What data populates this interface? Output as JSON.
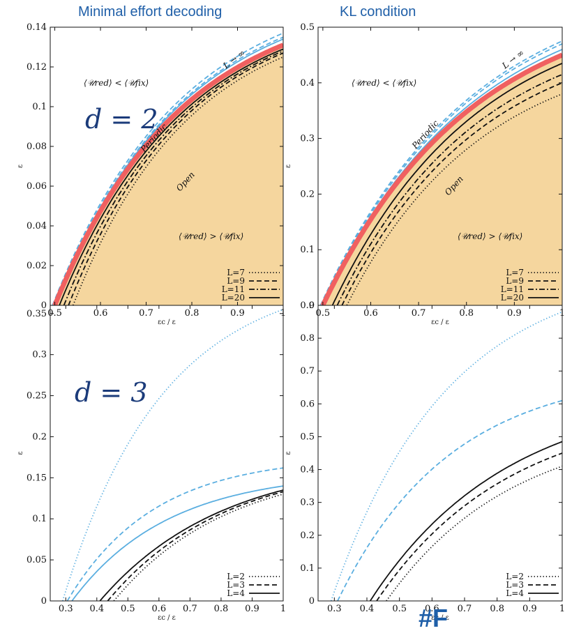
{
  "columns": {
    "left": "Minimal effort decoding",
    "right": "KL condition"
  },
  "labels": {
    "d2": "d = 2",
    "d3": "d = 3",
    "periodic": "Periodic",
    "open": "Open",
    "linf": "L → ∞",
    "region_upper": "⟨𝒰red⟩ < ⟨𝒰fix⟩",
    "region_lower": "⟨𝒰red⟩ > ⟨𝒰fix⟩",
    "xlabel": "εc / ε",
    "ylabel": "ε"
  },
  "colors": {
    "blue": "#5aaee0",
    "red": "#f06060",
    "fill": "#f5d69e",
    "black": "#111111"
  },
  "watermark": "#F",
  "chart_data": [
    {
      "panel": "top-left",
      "type": "line",
      "title": "Minimal effort decoding",
      "xlim": [
        0.49,
        1.0
      ],
      "ylim": [
        0,
        0.14
      ],
      "xticks": [
        0.5,
        0.6,
        0.7,
        0.8,
        0.9,
        1
      ],
      "xtick_labels": [
        "0.5",
        "0.6",
        "0.7",
        "0.8",
        "0.9",
        "1"
      ],
      "yticks": [
        0,
        0.02,
        0.04,
        0.06,
        0.08,
        0.1,
        0.12,
        0.14
      ],
      "ytick_labels": [
        "0",
        "0.02",
        "0.04",
        "0.06",
        "0.08",
        "0.1",
        "0.12",
        "0.14"
      ],
      "legend": [
        "L=7",
        "L=9",
        "L=11",
        "L=20"
      ],
      "legend_position": "bottom-right",
      "series": [
        {
          "name": "L=7",
          "group": "open",
          "style": "dotted",
          "x0": 0.54,
          "y1": 0.125,
          "k": 1.8
        },
        {
          "name": "L=9",
          "group": "open",
          "style": "dashed",
          "x0": 0.53,
          "y1": 0.127,
          "k": 1.8
        },
        {
          "name": "L=11",
          "group": "open",
          "style": "dashdot",
          "x0": 0.52,
          "y1": 0.128,
          "k": 1.8
        },
        {
          "name": "L=20",
          "group": "open",
          "style": "solid",
          "x0": 0.51,
          "y1": 0.129,
          "k": 1.8
        },
        {
          "group": "periodic",
          "style": "dashed",
          "x0": 0.495,
          "y1": 0.137,
          "k": 1.8
        },
        {
          "group": "periodic",
          "style": "dashed",
          "x0": 0.497,
          "y1": 0.135,
          "k": 1.8
        },
        {
          "group": "periodic",
          "style": "solid",
          "x0": 0.498,
          "y1": 0.134,
          "k": 1.8
        },
        {
          "group": "limit",
          "style": "thick",
          "x0": 0.5,
          "y1": 0.131,
          "k": 1.8
        }
      ]
    },
    {
      "panel": "top-right",
      "type": "line",
      "title": "KL condition",
      "xlim": [
        0.49,
        1.0
      ],
      "ylim": [
        0,
        0.5
      ],
      "xticks": [
        0.5,
        0.6,
        0.7,
        0.8,
        0.9,
        1
      ],
      "xtick_labels": [
        "0.5",
        "0.6",
        "0.7",
        "0.8",
        "0.9",
        "1"
      ],
      "yticks": [
        0,
        0.1,
        0.2,
        0.3,
        0.4,
        0.5
      ],
      "ytick_labels": [
        "0",
        "0.1",
        "0.2",
        "0.3",
        "0.4",
        "0.5"
      ],
      "legend": [
        "L=7",
        "L=9",
        "L=11",
        "L=20"
      ],
      "legend_position": "bottom-right",
      "series": [
        {
          "name": "L=7",
          "group": "open",
          "style": "dotted",
          "x0": 0.55,
          "y1": 0.38,
          "k": 1.6
        },
        {
          "name": "L=9",
          "group": "open",
          "style": "dashed",
          "x0": 0.54,
          "y1": 0.4,
          "k": 1.6
        },
        {
          "name": "L=11",
          "group": "open",
          "style": "dashdot",
          "x0": 0.53,
          "y1": 0.415,
          "k": 1.6
        },
        {
          "name": "L=20",
          "group": "open",
          "style": "solid",
          "x0": 0.52,
          "y1": 0.435,
          "k": 1.6
        },
        {
          "group": "periodic",
          "style": "dashed",
          "x0": 0.495,
          "y1": 0.475,
          "k": 1.6
        },
        {
          "group": "periodic",
          "style": "dashed",
          "x0": 0.497,
          "y1": 0.47,
          "k": 1.6
        },
        {
          "group": "periodic",
          "style": "solid",
          "x0": 0.498,
          "y1": 0.46,
          "k": 1.6
        },
        {
          "group": "limit",
          "style": "thick",
          "x0": 0.5,
          "y1": 0.45,
          "k": 1.6
        }
      ]
    },
    {
      "panel": "bottom-left",
      "type": "line",
      "xlim": [
        0.25,
        1.0
      ],
      "ylim": [
        0,
        0.36
      ],
      "xticks": [
        0.3,
        0.4,
        0.5,
        0.6,
        0.7,
        0.8,
        0.9,
        1
      ],
      "xtick_labels": [
        "0.3",
        "0.4",
        "0.5",
        "0.6",
        "0.7",
        "0.8",
        "0.9",
        "1"
      ],
      "yticks": [
        0,
        0.05,
        0.1,
        0.15,
        0.2,
        0.25,
        0.3,
        0.35
      ],
      "ytick_labels": [
        "0",
        "0.05",
        "0.1",
        "0.15",
        "0.2",
        "0.25",
        "0.3",
        "0.35"
      ],
      "legend": [
        "L=2",
        "L=3",
        "L=4"
      ],
      "legend_position": "bottom-right",
      "series": [
        {
          "name": "L=2",
          "group": "open",
          "style": "dotted",
          "x0": 0.455,
          "y1": 0.13,
          "k": 1.5
        },
        {
          "name": "L=3",
          "group": "open",
          "style": "dashed",
          "x0": 0.435,
          "y1": 0.133,
          "k": 1.5
        },
        {
          "name": "L=4",
          "group": "open",
          "style": "solid",
          "x0": 0.41,
          "y1": 0.135,
          "k": 1.5
        },
        {
          "group": "periodic",
          "style": "dotted",
          "x0": 0.29,
          "y1": 0.355,
          "k": 2.2
        },
        {
          "group": "periodic",
          "style": "dashed",
          "x0": 0.305,
          "y1": 0.162,
          "k": 2.5
        },
        {
          "group": "periodic",
          "style": "solid",
          "x0": 0.32,
          "y1": 0.14,
          "k": 2.2
        }
      ]
    },
    {
      "panel": "bottom-right",
      "type": "line",
      "xlim": [
        0.25,
        1.0
      ],
      "ylim": [
        0,
        0.9
      ],
      "xticks": [
        0.3,
        0.4,
        0.5,
        0.6,
        0.7,
        0.8,
        0.9,
        1
      ],
      "xtick_labels": [
        "0.3",
        "0.4",
        "0.5",
        "0.6",
        "0.7",
        "0.8",
        "0.9",
        "1"
      ],
      "yticks": [
        0,
        0.1,
        0.2,
        0.3,
        0.4,
        0.5,
        0.6,
        0.7,
        0.8,
        0.9
      ],
      "ytick_labels": [
        "0",
        "0.1",
        "0.2",
        "0.3",
        "0.4",
        "0.5",
        "0.6",
        "0.7",
        "0.8",
        "0.9"
      ],
      "legend": [
        "L=2",
        "L=3",
        "L=4"
      ],
      "legend_position": "bottom-right",
      "series": [
        {
          "name": "L=2",
          "group": "open",
          "style": "dotted",
          "x0": 0.46,
          "y1": 0.41,
          "k": 1.4
        },
        {
          "name": "L=3",
          "group": "open",
          "style": "dashed",
          "x0": 0.43,
          "y1": 0.45,
          "k": 1.4
        },
        {
          "name": "L=4",
          "group": "open",
          "style": "solid",
          "x0": 0.41,
          "y1": 0.485,
          "k": 1.4
        },
        {
          "group": "periodic",
          "style": "dotted",
          "x0": 0.29,
          "y1": 0.88,
          "k": 2.0
        },
        {
          "group": "periodic",
          "style": "dashed",
          "x0": 0.31,
          "y1": 0.61,
          "k": 2.0
        }
      ]
    }
  ]
}
